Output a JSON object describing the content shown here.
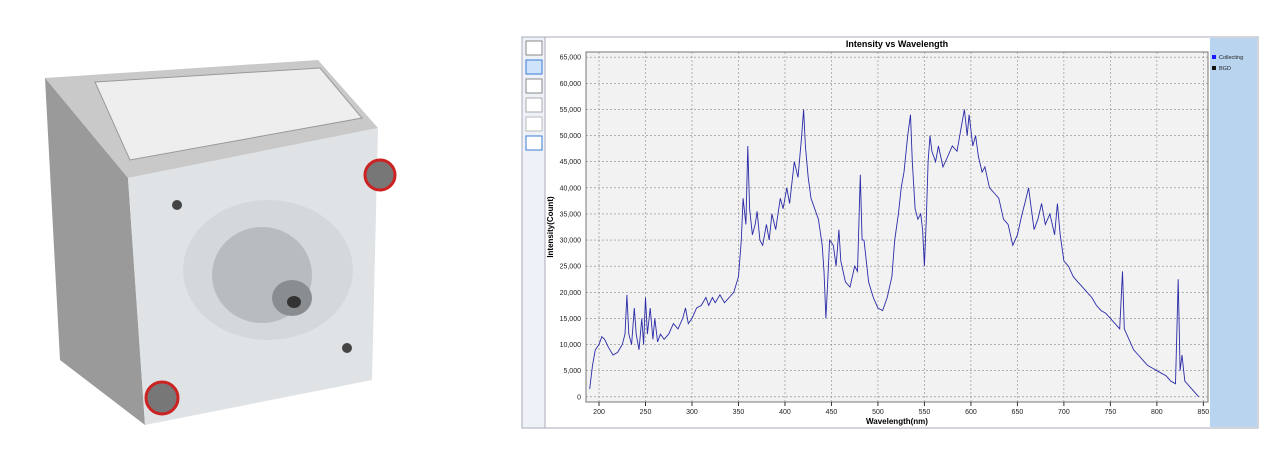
{
  "chart_data": {
    "type": "line",
    "title": "Intensity vs Wavelength",
    "x_label": "Wavelength(nm)",
    "y_label": "Intensity(Count)",
    "legend": [
      {
        "name": "Collecting",
        "color": "#1a1aff"
      },
      {
        "name": "BGD",
        "color": "#111111"
      }
    ],
    "grid": true,
    "xlim": [
      186,
      855
    ],
    "ylim": [
      -1000,
      66000
    ],
    "xticks": [
      200,
      250,
      300,
      350,
      400,
      450,
      500,
      550,
      600,
      650,
      700,
      750,
      800,
      850
    ],
    "yticks": [
      0,
      {
        "value": 5000,
        "label": "5,000"
      },
      {
        "value": 10000,
        "label": "10,000"
      },
      {
        "value": 15000,
        "label": "15,000"
      },
      {
        "value": 20000,
        "label": "20,000"
      },
      {
        "value": 25000,
        "label": "25,000"
      },
      {
        "value": 30000,
        "label": "30,000"
      },
      {
        "value": 35000,
        "label": "35,000"
      },
      {
        "value": 40000,
        "label": "40,000"
      },
      {
        "value": 45000,
        "label": "45,000"
      },
      {
        "value": 50000,
        "label": "50,000"
      },
      {
        "value": 55000,
        "label": "55,000"
      },
      {
        "value": 60000,
        "label": "60,000"
      },
      {
        "value": 65000,
        "label": "65,000"
      }
    ],
    "x": [
      190,
      193,
      196,
      200,
      203,
      206,
      210,
      215,
      220,
      225,
      228,
      230,
      232,
      235,
      238,
      240,
      243,
      246,
      248,
      250,
      252,
      255,
      258,
      260,
      263,
      266,
      270,
      275,
      280,
      285,
      290,
      293,
      296,
      300,
      305,
      310,
      315,
      318,
      322,
      325,
      330,
      335,
      340,
      345,
      350,
      353,
      355,
      358,
      360,
      362,
      365,
      368,
      370,
      373,
      376,
      380,
      383,
      386,
      390,
      395,
      398,
      402,
      405,
      410,
      414,
      418,
      420,
      422,
      425,
      428,
      432,
      436,
      440,
      442,
      444,
      446,
      448,
      452,
      455,
      458,
      460,
      465,
      470,
      475,
      478,
      481,
      483,
      485,
      490,
      495,
      500,
      505,
      510,
      515,
      518,
      522,
      525,
      528,
      532,
      535,
      537,
      540,
      543,
      546,
      548,
      550,
      552,
      554,
      556,
      558,
      562,
      565,
      570,
      575,
      580,
      585,
      590,
      593,
      596,
      598,
      602,
      605,
      608,
      612,
      615,
      620,
      625,
      630,
      635,
      640,
      645,
      650,
      655,
      658,
      662,
      665,
      668,
      672,
      676,
      680,
      685,
      690,
      693,
      696,
      700,
      705,
      710,
      715,
      720,
      725,
      730,
      735,
      740,
      745,
      750,
      755,
      760,
      763,
      765,
      770,
      775,
      780,
      785,
      790,
      795,
      800,
      805,
      810,
      815,
      820,
      823,
      825,
      827,
      830,
      835,
      840,
      845
    ],
    "series": [
      {
        "name": "Collecting",
        "color": "#2b2ba8",
        "values": [
          1500,
          6000,
          9000,
          10000,
          11500,
          11000,
          9500,
          8000,
          8500,
          10000,
          12000,
          19500,
          12000,
          10000,
          17000,
          12000,
          9000,
          15000,
          10000,
          19000,
          12000,
          17000,
          11000,
          15000,
          10500,
          12000,
          11000,
          12000,
          14000,
          13000,
          15000,
          17000,
          14000,
          15000,
          17000,
          17500,
          19000,
          17500,
          19000,
          18000,
          19500,
          18000,
          19000,
          20000,
          23000,
          30000,
          38000,
          33000,
          48000,
          36000,
          31000,
          33000,
          35500,
          30000,
          29000,
          33000,
          30000,
          35000,
          32000,
          38000,
          36000,
          40000,
          37000,
          45000,
          42000,
          50000,
          55000,
          48000,
          42000,
          38000,
          36000,
          34000,
          29000,
          24000,
          15000,
          22000,
          30000,
          29000,
          25000,
          32000,
          26000,
          22000,
          21000,
          25000,
          24000,
          42500,
          30000,
          30000,
          22000,
          19000,
          17000,
          16500,
          19000,
          23000,
          30000,
          35000,
          40000,
          43000,
          50000,
          54000,
          45000,
          36000,
          34000,
          35000,
          32000,
          25000,
          34000,
          45000,
          50000,
          47000,
          45000,
          48000,
          44000,
          46000,
          48000,
          47000,
          52000,
          55000,
          50000,
          54000,
          48000,
          50000,
          46000,
          43000,
          44000,
          40000,
          39000,
          38000,
          34000,
          33000,
          29000,
          31000,
          35000,
          37000,
          40000,
          36000,
          32000,
          34000,
          37000,
          33000,
          35000,
          31000,
          37000,
          31000,
          26000,
          25000,
          23000,
          22000,
          21000,
          20000,
          19000,
          17500,
          16500,
          16000,
          15000,
          14000,
          13000,
          24000,
          13000,
          11000,
          9000,
          8000,
          7000,
          6000,
          5500,
          5000,
          4500,
          4000,
          3000,
          2500,
          22500,
          5000,
          8000,
          3000,
          2000,
          1000,
          0
        ]
      }
    ]
  }
}
